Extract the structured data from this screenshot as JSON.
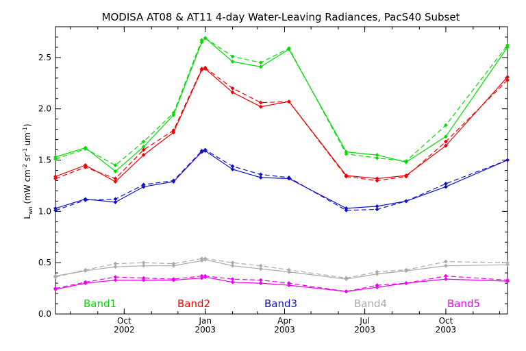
{
  "chart_data": {
    "type": "line",
    "title": "MODISA AT08 & AT11 4-day Water-Leaving Radiances, PacS40 Subset",
    "ylabel": "L_wn (mW cm^-2 sr^-1 um^-1)",
    "ylabel_parts": {
      "base": "L",
      "sub": "wn",
      "unit_pre": " (mW cm",
      "sup1": "-2",
      "mid": " sr",
      "sup2": "-1",
      "um": " um",
      "sup3": "-1",
      "close": ")"
    },
    "xlim": [
      "2002-07-15",
      "2003-12-10"
    ],
    "ylim": [
      0,
      2.8
    ],
    "yticks": [
      "0.0",
      "0.5",
      "1.0",
      "1.5",
      "2.0",
      "2.5"
    ],
    "x_ticks": [
      {
        "date": "2002-10-01",
        "month": "Oct",
        "year": "2002"
      },
      {
        "date": "2003-01-01",
        "month": "Jan",
        "year": "2003"
      },
      {
        "date": "2003-04-01",
        "month": "Apr",
        "year": "2003"
      },
      {
        "date": "2003-07-01",
        "month": "Jul",
        "year": "2003"
      },
      {
        "date": "2003-10-01",
        "month": "Oct",
        "year": "2003"
      }
    ],
    "line_styles": {
      "AT08": "solid",
      "AT11": "dashed"
    },
    "dates_at08": [
      "2002-07-15",
      "2002-08-18",
      "2002-09-21",
      "2002-10-23",
      "2002-11-26",
      "2002-12-28",
      "2003-01-01",
      "2003-02-01",
      "2003-03-05",
      "2003-04-06",
      "2003-06-10",
      "2003-07-15",
      "2003-08-17",
      "2003-10-01",
      "2003-12-10"
    ],
    "dates_at11": [
      "2002-07-15",
      "2002-08-18",
      "2002-09-21",
      "2002-10-23",
      "2002-11-26",
      "2002-12-28",
      "2003-01-01",
      "2003-02-01",
      "2003-03-05",
      "2003-04-06",
      "2003-06-10",
      "2003-07-15",
      "2003-08-17",
      "2003-10-01",
      "2003-12-10"
    ],
    "series": [
      {
        "name": "Band1",
        "color": "#00dd00",
        "at08": [
          1.53,
          1.62,
          1.39,
          1.63,
          1.94,
          2.65,
          2.69,
          2.46,
          2.41,
          2.58,
          1.58,
          1.55,
          1.48,
          1.73,
          2.6
        ],
        "at11": [
          1.51,
          1.61,
          1.45,
          1.68,
          1.96,
          2.67,
          2.69,
          2.51,
          2.45,
          2.59,
          1.56,
          1.52,
          1.49,
          1.84,
          2.62
        ]
      },
      {
        "name": "Band2",
        "color": "#ee0000",
        "at08": [
          1.34,
          1.45,
          1.29,
          1.55,
          1.77,
          2.38,
          2.39,
          2.16,
          2.02,
          2.07,
          1.35,
          1.32,
          1.35,
          1.64,
          2.31
        ],
        "at11": [
          1.32,
          1.43,
          1.32,
          1.6,
          1.79,
          2.39,
          2.4,
          2.2,
          2.06,
          2.07,
          1.34,
          1.3,
          1.34,
          1.68,
          2.28
        ]
      },
      {
        "name": "Band3",
        "color": "#1111cc",
        "at08": [
          1.03,
          1.12,
          1.09,
          1.24,
          1.29,
          1.58,
          1.59,
          1.41,
          1.33,
          1.32,
          1.03,
          1.05,
          1.1,
          1.24,
          1.5
        ],
        "at11": [
          1.01,
          1.11,
          1.12,
          1.26,
          1.3,
          1.59,
          1.6,
          1.44,
          1.36,
          1.33,
          1.01,
          1.02,
          1.1,
          1.27,
          1.5
        ]
      },
      {
        "name": "Band4",
        "color": "#aaaaaa",
        "at08": [
          0.37,
          0.42,
          0.46,
          0.47,
          0.47,
          0.52,
          0.53,
          0.47,
          0.44,
          0.41,
          0.34,
          0.39,
          0.42,
          0.47,
          0.48
        ],
        "at11": [
          0.36,
          0.43,
          0.49,
          0.5,
          0.49,
          0.54,
          0.54,
          0.5,
          0.47,
          0.43,
          0.35,
          0.41,
          0.43,
          0.51,
          0.5
        ]
      },
      {
        "name": "Band5",
        "color": "#ee00ee",
        "at08": [
          0.24,
          0.3,
          0.33,
          0.33,
          0.33,
          0.35,
          0.36,
          0.31,
          0.3,
          0.28,
          0.22,
          0.26,
          0.3,
          0.34,
          0.32
        ],
        "at11": [
          0.25,
          0.31,
          0.36,
          0.35,
          0.34,
          0.37,
          0.37,
          0.34,
          0.33,
          0.3,
          0.22,
          0.28,
          0.3,
          0.37,
          0.33
        ]
      }
    ],
    "legend": [
      "Band1",
      "Band2",
      "Band3",
      "Band4",
      "Band5"
    ],
    "legend_placement": "bottom inside plot"
  }
}
